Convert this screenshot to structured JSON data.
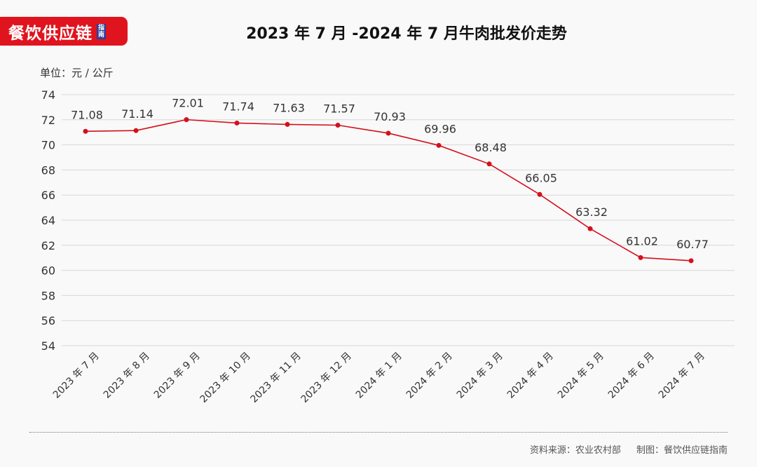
{
  "logo": {
    "text": "餐饮供应链",
    "badge": "指南",
    "color": "#e0141e",
    "badge_color": "#2b3f9a"
  },
  "title": "2023 年 7 月 -2024 年 7 月牛肉批发价走势",
  "unit_label": "单位：元 / 公斤",
  "footer": {
    "source": "资料来源：农业农村部",
    "credit": "制图：餐饮供应链指南"
  },
  "chart_data": {
    "type": "line",
    "title": "2023 年 7 月 -2024 年 7 月牛肉批发价走势",
    "xlabel": "",
    "ylabel": "单位：元 / 公斤",
    "ylim": [
      54,
      74
    ],
    "yticks": [
      54,
      56,
      58,
      60,
      62,
      64,
      66,
      68,
      70,
      72,
      74
    ],
    "grid": true,
    "legend": "none",
    "line_color": "#d4101c",
    "categories": [
      "2023 年 7 月",
      "2023 年 8 月",
      "2023 年 9 月",
      "2023 年 10 月",
      "2023 年 11 月",
      "2023 年 12 月",
      "2024 年 1 月",
      "2024 年 2 月",
      "2024 年 3 月",
      "2024 年 4 月",
      "2024 年 5 月",
      "2024 年 6 月",
      "2024 年 7 月"
    ],
    "series": [
      {
        "name": "牛肉批发价",
        "values": [
          71.08,
          71.14,
          72.01,
          71.74,
          71.63,
          71.57,
          70.93,
          69.96,
          68.48,
          66.05,
          63.32,
          61.02,
          60.77
        ]
      }
    ]
  }
}
